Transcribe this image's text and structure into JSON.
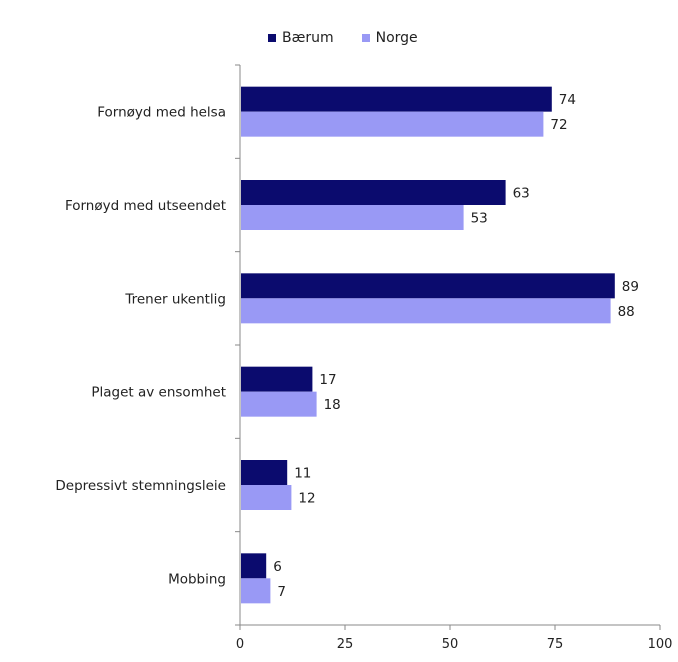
{
  "chart_data": {
    "type": "bar",
    "orientation": "horizontal",
    "categories": [
      "Fornøyd med helsa",
      "Fornøyd med utseendet",
      "Trener ukentlig",
      "Plaget av ensomhet",
      "Depressivt stemningsleie",
      "Mobbing"
    ],
    "series": [
      {
        "name": "Bærum",
        "color": "#0b0b6e",
        "values": [
          74,
          63,
          89,
          17,
          11,
          6
        ]
      },
      {
        "name": "Norge",
        "color": "#9999f5",
        "values": [
          72,
          53,
          88,
          18,
          12,
          7
        ]
      }
    ],
    "xlim": [
      0,
      100
    ],
    "xticks": [
      "0",
      "25",
      "50",
      "75",
      "100"
    ],
    "xtick_values": [
      0,
      25,
      50,
      75,
      100
    ],
    "data_labels": true,
    "grid": false,
    "legend_position": "top"
  }
}
